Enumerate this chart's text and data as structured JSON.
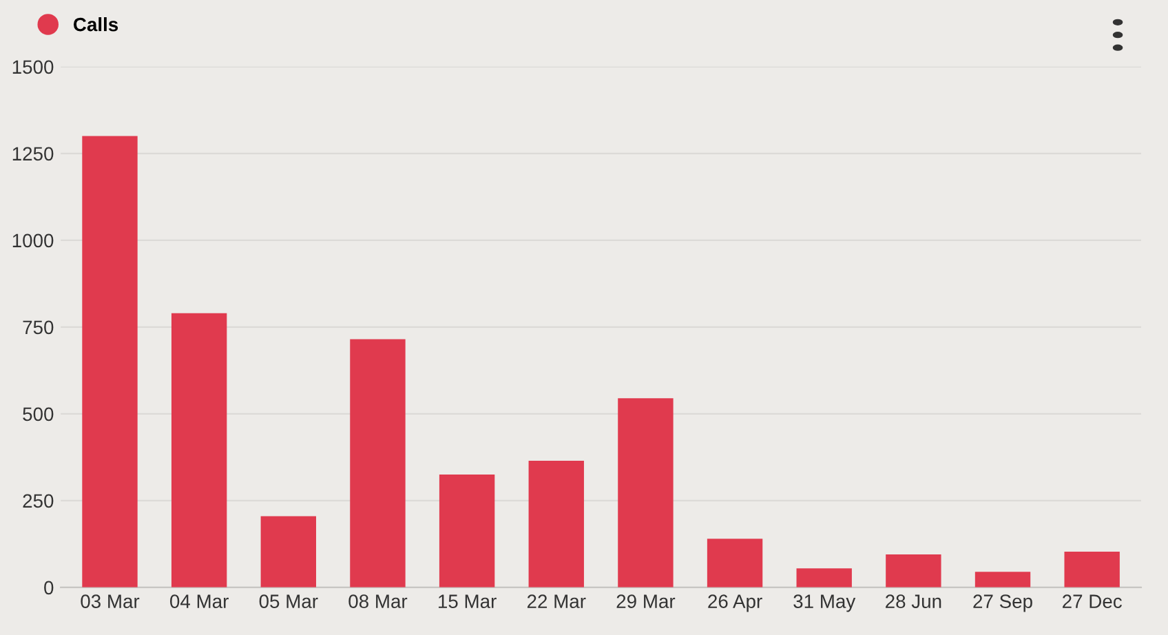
{
  "chart_data": {
    "type": "bar",
    "categories": [
      "03 Mar",
      "04 Mar",
      "05 Mar",
      "08 Mar",
      "15 Mar",
      "22 Mar",
      "29 Mar",
      "26 Apr",
      "31 May",
      "28 Jun",
      "27 Sep",
      "27 Dec"
    ],
    "series": [
      {
        "name": "Calls",
        "color": "#e03a4e",
        "values": [
          1300,
          790,
          205,
          715,
          325,
          365,
          545,
          140,
          55,
          95,
          45,
          103
        ]
      }
    ],
    "ylim": [
      0,
      1500
    ],
    "yticks": [
      0,
      250,
      500,
      750,
      1000,
      1250,
      1500
    ],
    "grid": "y",
    "legend": "top left"
  }
}
